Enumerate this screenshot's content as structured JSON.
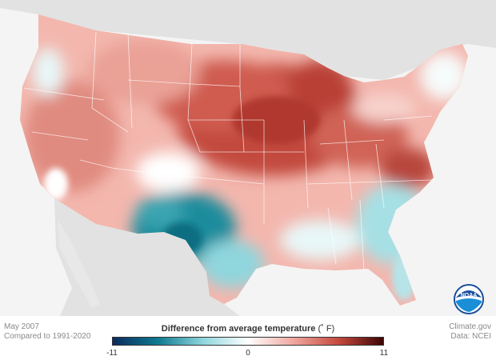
{
  "footer": {
    "date": "May 2007",
    "baseline": "Compared to 1991-2020",
    "source_site": "Climate.gov",
    "source_data": "Data: NCEI"
  },
  "legend": {
    "title": "Difference from average temperature",
    "unit": "(˚ F)",
    "min_label": "-11",
    "mid_label": "0",
    "max_label": "11",
    "min": -11,
    "max": 11,
    "colors": [
      "#0b2b5c",
      "#0e7a90",
      "#8fd6dd",
      "#ffffff",
      "#f0a8a0",
      "#c64a3e",
      "#3d0505"
    ]
  },
  "logo": {
    "text": "NOAA"
  },
  "colors": {
    "background": "#f4f4f4",
    "land": "#f0a8a0",
    "cold_anomaly": "#0e7a90",
    "warm_anomaly": "#c64a3e"
  }
}
